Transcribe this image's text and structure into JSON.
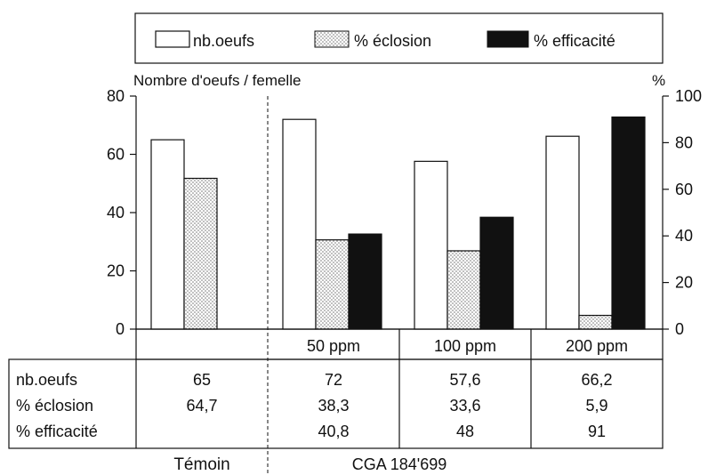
{
  "chart_data": {
    "type": "bar",
    "legend": {
      "placement": "top-center",
      "entries": [
        {
          "label": "nb.oeufs",
          "style": "white"
        },
        {
          "label": "% éclosion",
          "style": "dotted"
        },
        {
          "label": "% efficacité",
          "style": "black"
        }
      ]
    },
    "ylabel_left": "Nombre d'oeufs / femelle",
    "ylabel_right": "%",
    "ylim_left": [
      0,
      80
    ],
    "ylim_right": [
      0,
      100
    ],
    "yticks_left": [
      "0",
      "20",
      "40",
      "60",
      "80"
    ],
    "yticks_right": [
      "0",
      "20",
      "40",
      "60",
      "80",
      "100"
    ],
    "categories": [
      "",
      "50 ppm",
      "100 ppm",
      "200 ppm"
    ],
    "groups": [
      "Témoin",
      "CGA 184'699"
    ],
    "series": [
      {
        "name": "nb.oeufs",
        "axis": "left",
        "values": [
          65,
          72,
          57.6,
          66.2
        ]
      },
      {
        "name": "% éclosion",
        "axis": "right",
        "values": [
          64.7,
          38.3,
          33.6,
          5.9
        ]
      },
      {
        "name": "% efficacité",
        "axis": "right",
        "values": [
          null,
          40.8,
          48,
          91
        ]
      }
    ],
    "table": {
      "row_labels": [
        "nb.oeufs",
        "% éclosion",
        "% efficacité"
      ],
      "rows": [
        [
          "65",
          "72",
          "57,6",
          "66,2"
        ],
        [
          "64,7",
          "38,3",
          "33,6",
          "5,9"
        ],
        [
          "",
          "40,8",
          "48",
          "91"
        ]
      ]
    },
    "grid": false
  },
  "colors": {
    "ink": "#111111",
    "dots": "#c8c8c8",
    "background": "#ffffff"
  }
}
